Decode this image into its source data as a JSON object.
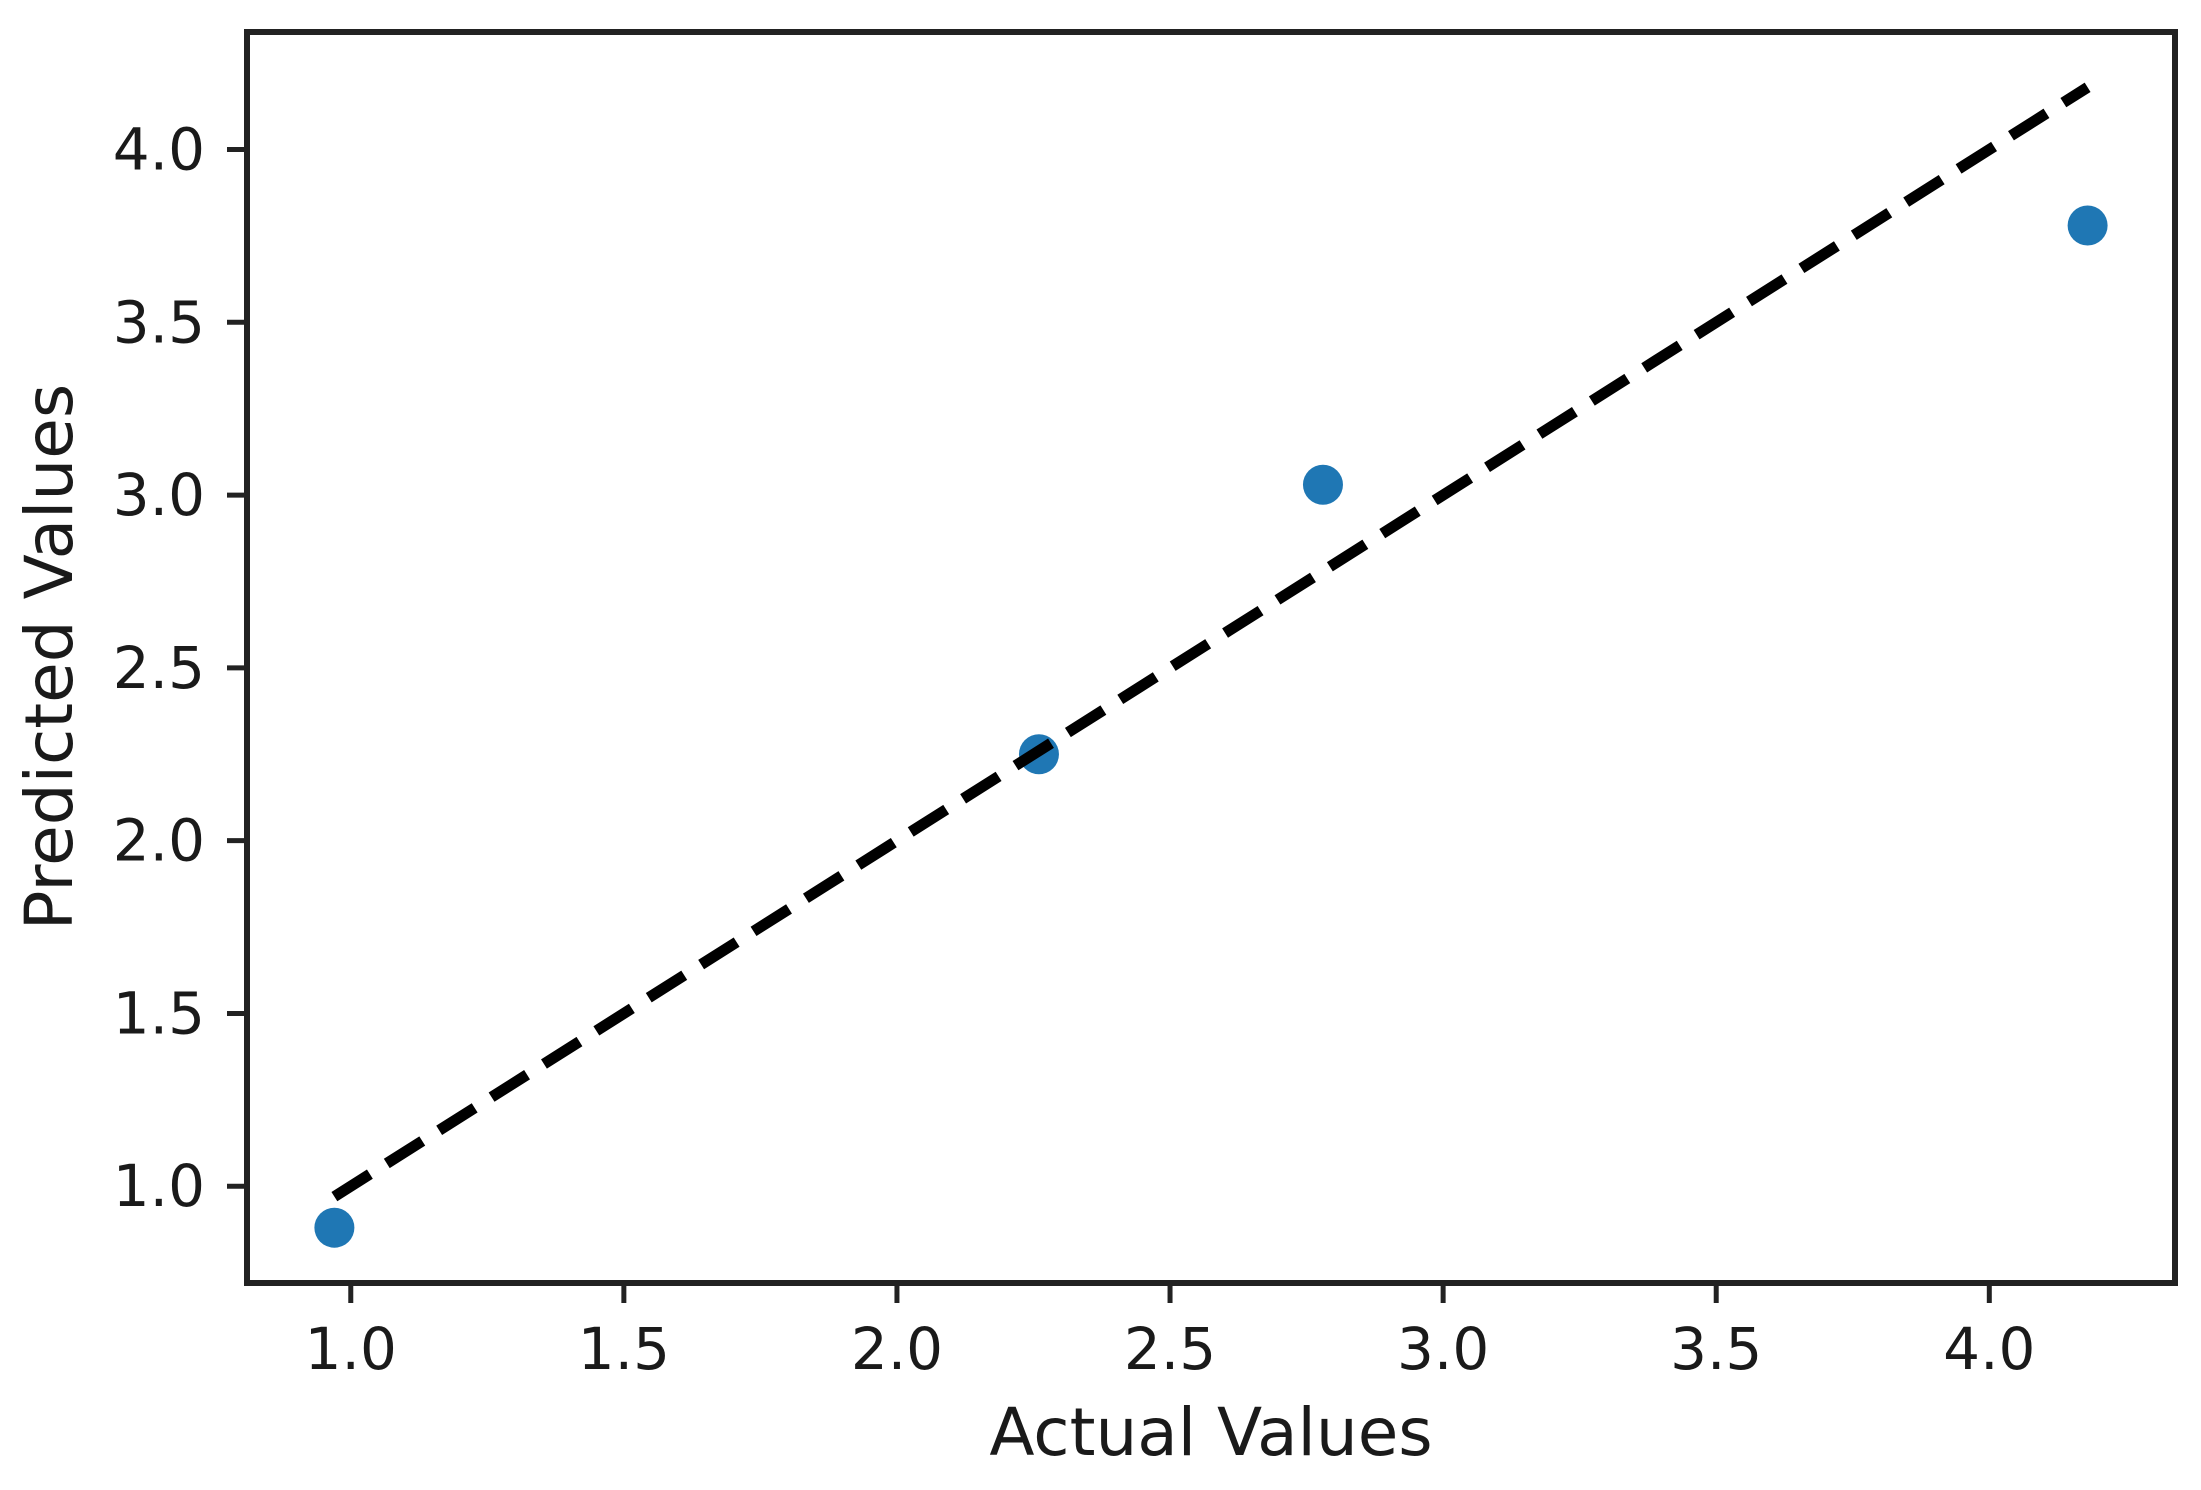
{
  "figure": {
    "background": "#ffffff"
  },
  "chart_data": {
    "type": "scatter",
    "title": "",
    "xlabel": "Actual Values",
    "ylabel": "Predicted Values",
    "xlim": [
      0.81,
      4.34
    ],
    "ylim": [
      0.72,
      4.34
    ],
    "xticks": [
      "1.0",
      "1.5",
      "2.0",
      "2.5",
      "3.0",
      "3.5",
      "4.0"
    ],
    "yticks": [
      "1.0",
      "1.5",
      "2.0",
      "2.5",
      "3.0",
      "3.5",
      "4.0"
    ],
    "points": [
      {
        "x": 0.97,
        "y": 0.88
      },
      {
        "x": 2.26,
        "y": 2.25
      },
      {
        "x": 2.78,
        "y": 3.03
      },
      {
        "x": 4.18,
        "y": 3.78
      }
    ],
    "reference_line": {
      "x1": 0.97,
      "y1": 0.97,
      "x2": 4.18,
      "y2": 4.18,
      "style": "dashed"
    },
    "marker_color": "#1f77b4",
    "line_color": "#000000",
    "axis_color": "#222222",
    "grid": false,
    "legend_position": "none"
  }
}
